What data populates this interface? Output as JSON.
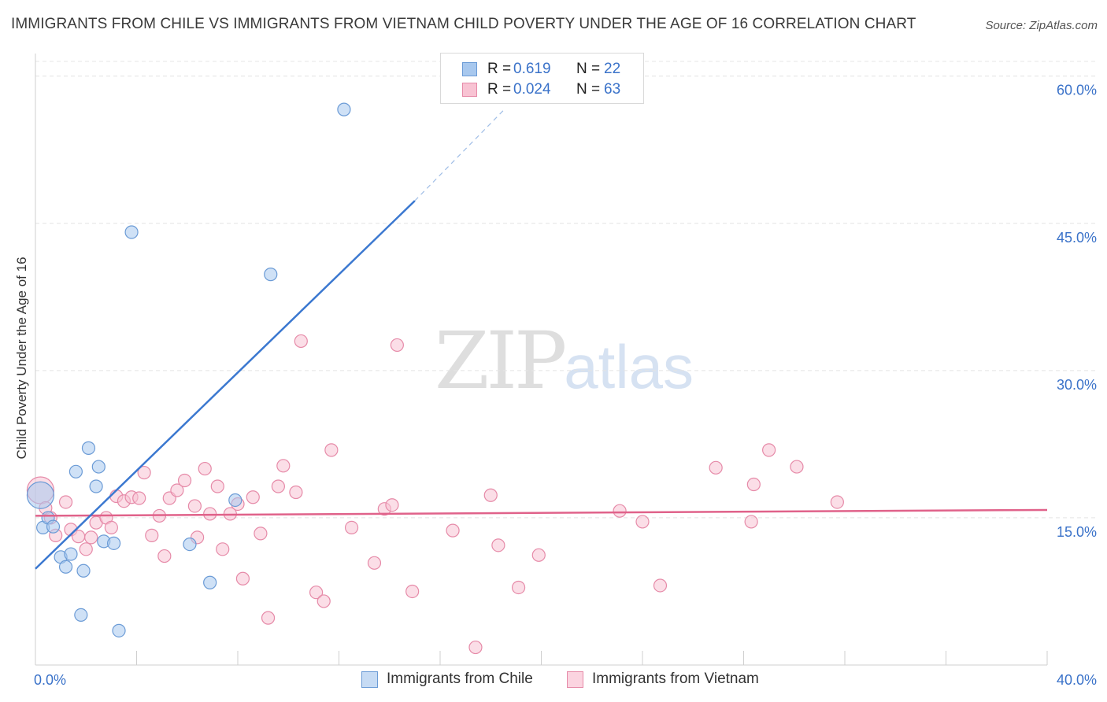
{
  "header": {
    "title": "IMMIGRANTS FROM CHILE VS IMMIGRANTS FROM VIETNAM CHILD POVERTY UNDER THE AGE OF 16 CORRELATION CHART",
    "source": "Source: ZipAtlas.com"
  },
  "watermark": {
    "zip": "ZIP",
    "atlas": "atlas"
  },
  "legend": {
    "rows": [
      {
        "r_label": "R =",
        "r_value": "0.619",
        "n_label": "N =",
        "n_value": "22",
        "color": "#a8c8ee",
        "border": "#6b9bd6"
      },
      {
        "r_label": "R =",
        "r_value": "0.024",
        "n_label": "N =",
        "n_value": "63",
        "color": "#f8c3d3",
        "border": "#e68aa8"
      }
    ]
  },
  "bottom_legend": [
    {
      "label": "Immigrants from Chile",
      "color": "#c6dbf4",
      "border": "#6b9bd6"
    },
    {
      "label": "Immigrants from Vietnam",
      "color": "#fbd4e0",
      "border": "#e68aa8"
    }
  ],
  "colors": {
    "chile_fill": "#a8c8ee",
    "chile_stroke": "#6b9bd6",
    "chile_line": "#3b78d0",
    "vietnam_fill": "#f8c3d3",
    "vietnam_stroke": "#e68aa8",
    "vietnam_line": "#e0628a",
    "grid": "#e4e4e4",
    "axis_text": "#3a72c9"
  },
  "chart_data": {
    "type": "scatter",
    "title": "IMMIGRANTS FROM CHILE VS IMMIGRANTS FROM VIETNAM CHILD POVERTY UNDER THE AGE OF 16 CORRELATION CHART",
    "xlabel": "",
    "ylabel": "Child Poverty Under the Age of 16",
    "xlim": [
      0,
      40
    ],
    "ylim": [
      0,
      61.5
    ],
    "x_tick_labels": [
      {
        "value": 0,
        "label": "0.0%"
      },
      {
        "value": 40,
        "label": "40.0%"
      }
    ],
    "y_tick_labels": [
      {
        "value": 15,
        "label": "15.0%"
      },
      {
        "value": 30,
        "label": "30.0%"
      },
      {
        "value": 45,
        "label": "45.0%"
      },
      {
        "value": 60,
        "label": "60.0%"
      }
    ],
    "x_minor_ticks": [
      4,
      8,
      12,
      16,
      20,
      24,
      28,
      32,
      36,
      40
    ],
    "series": [
      {
        "name": "Immigrants from Chile",
        "R": 0.619,
        "N": 22,
        "points": [
          [
            0.2,
            17.3,
            "large"
          ],
          [
            0.3,
            14.0
          ],
          [
            0.5,
            15.0
          ],
          [
            0.7,
            14.1
          ],
          [
            1.0,
            11.0
          ],
          [
            1.2,
            10.0
          ],
          [
            1.4,
            11.3
          ],
          [
            1.6,
            19.7
          ],
          [
            1.8,
            5.1
          ],
          [
            1.9,
            9.6
          ],
          [
            2.1,
            22.1
          ],
          [
            2.4,
            18.2
          ],
          [
            2.5,
            20.2
          ],
          [
            2.7,
            12.6
          ],
          [
            3.1,
            12.4
          ],
          [
            3.3,
            3.5
          ],
          [
            3.8,
            44.1
          ],
          [
            6.1,
            12.3
          ],
          [
            6.9,
            8.4
          ],
          [
            7.9,
            16.8
          ],
          [
            9.3,
            39.8
          ],
          [
            12.2,
            56.6
          ]
        ],
        "trend": {
          "x0": 0,
          "y0": 9.8,
          "x1": 15.0,
          "y1": 47.3,
          "dashed_to_x": 18.5,
          "dashed_to_y": 56.5
        }
      },
      {
        "name": "Immigrants from Vietnam",
        "R": 0.024,
        "N": 63,
        "points": [
          [
            0.2,
            17.8,
            "large"
          ],
          [
            0.4,
            16.0
          ],
          [
            0.6,
            15.0
          ],
          [
            0.8,
            13.2
          ],
          [
            1.2,
            16.6
          ],
          [
            1.4,
            13.8
          ],
          [
            1.7,
            13.1
          ],
          [
            2.0,
            11.8
          ],
          [
            2.2,
            13.0
          ],
          [
            2.4,
            14.5
          ],
          [
            2.8,
            15.0
          ],
          [
            3.0,
            14.0
          ],
          [
            3.2,
            17.2
          ],
          [
            3.5,
            16.7
          ],
          [
            3.8,
            17.1
          ],
          [
            4.1,
            17.0
          ],
          [
            4.3,
            19.6
          ],
          [
            4.6,
            13.2
          ],
          [
            4.9,
            15.2
          ],
          [
            5.1,
            11.1
          ],
          [
            5.3,
            17.0
          ],
          [
            5.6,
            17.8
          ],
          [
            5.9,
            18.8
          ],
          [
            6.3,
            16.2
          ],
          [
            6.4,
            13.0
          ],
          [
            6.7,
            20.0
          ],
          [
            6.9,
            15.4
          ],
          [
            7.2,
            18.2
          ],
          [
            7.4,
            11.8
          ],
          [
            7.7,
            15.4
          ],
          [
            8.0,
            16.4
          ],
          [
            8.2,
            8.8
          ],
          [
            8.6,
            17.1
          ],
          [
            8.9,
            13.4
          ],
          [
            9.2,
            4.8
          ],
          [
            9.6,
            18.2
          ],
          [
            9.8,
            20.3
          ],
          [
            10.3,
            17.6
          ],
          [
            10.5,
            33.0
          ],
          [
            11.1,
            7.4
          ],
          [
            11.4,
            6.5
          ],
          [
            11.7,
            21.9
          ],
          [
            12.5,
            14.0
          ],
          [
            13.4,
            10.4
          ],
          [
            13.8,
            15.9
          ],
          [
            14.1,
            16.3
          ],
          [
            14.3,
            32.6
          ],
          [
            14.9,
            7.5
          ],
          [
            16.5,
            13.7
          ],
          [
            17.4,
            1.8
          ],
          [
            18.0,
            17.3
          ],
          [
            18.3,
            12.2
          ],
          [
            19.1,
            7.9
          ],
          [
            19.9,
            11.2
          ],
          [
            23.1,
            15.7
          ],
          [
            24.0,
            14.6
          ],
          [
            24.7,
            8.1
          ],
          [
            26.9,
            20.1
          ],
          [
            28.3,
            14.6
          ],
          [
            28.4,
            18.4
          ],
          [
            29.0,
            21.9
          ],
          [
            30.1,
            20.2
          ],
          [
            31.7,
            16.6
          ]
        ],
        "trend": {
          "x0": 0,
          "y0": 15.2,
          "x1": 40,
          "y1": 15.8
        }
      }
    ]
  }
}
